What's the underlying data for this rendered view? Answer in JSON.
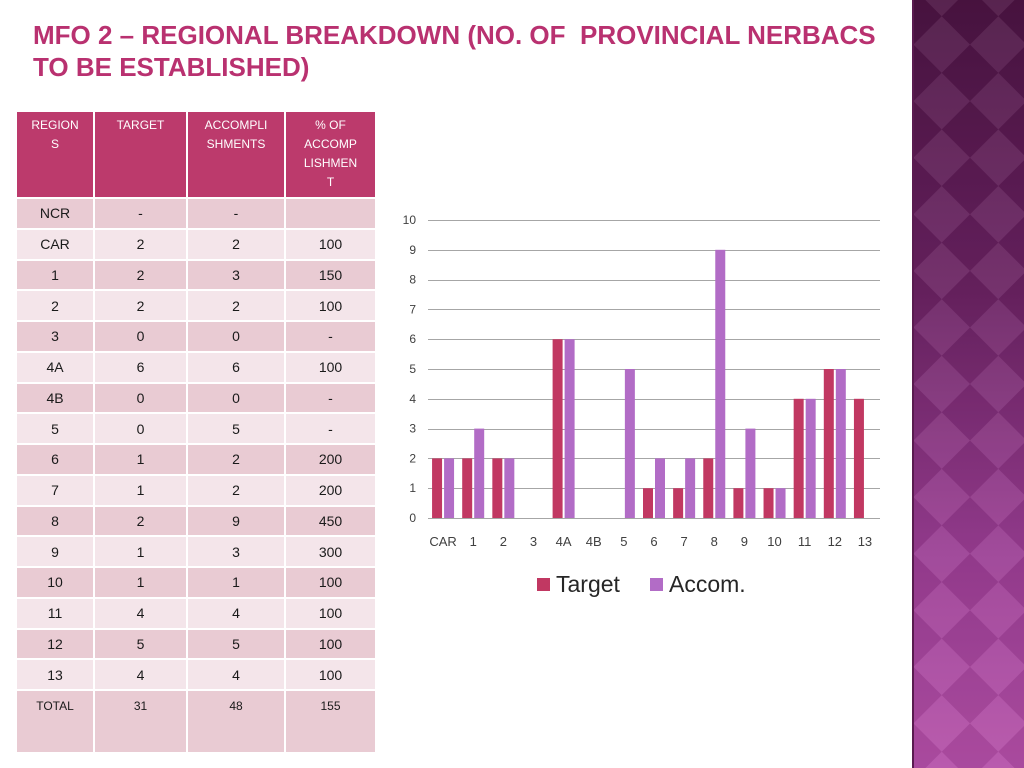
{
  "slide": {
    "title": "MFO 2 – REGIONAL BREAKDOWN (NO. OF  PROVINCIAL NERBACS TO BE ESTABLISHED)",
    "title_color": "#b93170"
  },
  "table": {
    "header_color": "#bc3a6c",
    "row_colors": [
      "#e9cbd3",
      "#f4e5ea"
    ],
    "headers": {
      "regions": "REGIONS",
      "target": "TARGET",
      "accomplishments": "ACCOMPLISHMENTS",
      "percent": "% OF ACCOMPLISHMENT"
    },
    "rows": [
      {
        "region": "NCR",
        "target": "-",
        "accomplishments": "-",
        "percent": ""
      },
      {
        "region": "CAR",
        "target": "2",
        "accomplishments": "2",
        "percent": "100"
      },
      {
        "region": "1",
        "target": "2",
        "accomplishments": "3",
        "percent": "150"
      },
      {
        "region": "2",
        "target": "2",
        "accomplishments": "2",
        "percent": "100"
      },
      {
        "region": "3",
        "target": "0",
        "accomplishments": "0",
        "percent": "-"
      },
      {
        "region": "4A",
        "target": "6",
        "accomplishments": "6",
        "percent": "100"
      },
      {
        "region": "4B",
        "target": "0",
        "accomplishments": "0",
        "percent": "-"
      },
      {
        "region": "5",
        "target": "0",
        "accomplishments": "5",
        "percent": "-"
      },
      {
        "region": "6",
        "target": "1",
        "accomplishments": "2",
        "percent": "200"
      },
      {
        "region": "7",
        "target": "1",
        "accomplishments": "2",
        "percent": "200"
      },
      {
        "region": "8",
        "target": "2",
        "accomplishments": "9",
        "percent": "450"
      },
      {
        "region": "9",
        "target": "1",
        "accomplishments": "3",
        "percent": "300"
      },
      {
        "region": "10",
        "target": "1",
        "accomplishments": "1",
        "percent": "100"
      },
      {
        "region": "11",
        "target": "4",
        "accomplishments": "4",
        "percent": "100"
      },
      {
        "region": "12",
        "target": "5",
        "accomplishments": "5",
        "percent": "100"
      },
      {
        "region": "13",
        "target": "4",
        "accomplishments": "4",
        "percent": "100"
      }
    ],
    "total": {
      "region": "TOTAL",
      "target": "31",
      "accomplishments": "48",
      "percent": "155"
    }
  },
  "chart_data": {
    "type": "bar",
    "categories": [
      "CAR",
      "1",
      "2",
      "3",
      "4A",
      "4B",
      "5",
      "6",
      "7",
      "8",
      "9",
      "10",
      "11",
      "12",
      "13"
    ],
    "series": [
      {
        "name": "Target",
        "color": "#c13862",
        "values": [
          2,
          2,
          2,
          0,
          6,
          0,
          0,
          1,
          1,
          2,
          1,
          1,
          4,
          5,
          4
        ]
      },
      {
        "name": "Accom.",
        "color": "#b26cc6",
        "values": [
          2,
          3,
          2,
          0,
          6,
          0,
          5,
          2,
          2,
          9,
          3,
          1,
          4,
          5,
          null
        ]
      }
    ],
    "ylim": [
      0,
      10
    ],
    "yticks": [
      0,
      1,
      2,
      3,
      4,
      5,
      6,
      7,
      8,
      9,
      10
    ],
    "grid": true,
    "legend": "bottom"
  }
}
